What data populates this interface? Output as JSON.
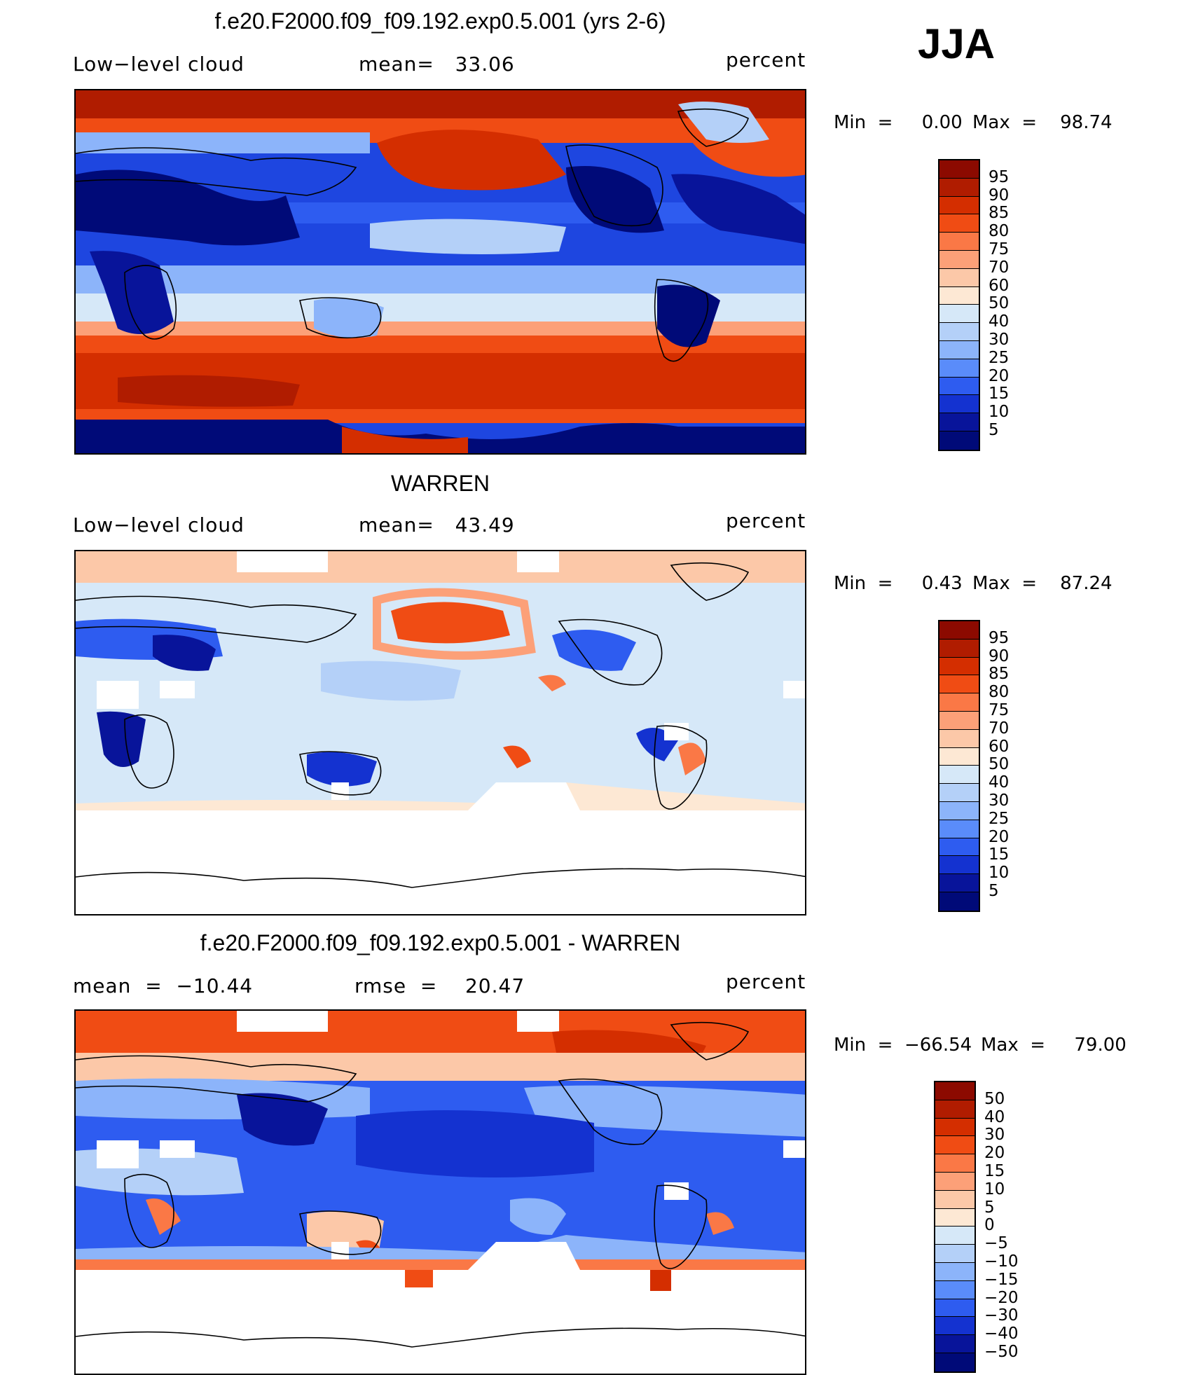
{
  "season": "JJA",
  "panels": [
    {
      "title": "f.e20.F2000.f09_f09.192.exp0.5.001 (yrs 2-6)",
      "left_label": "Low−level cloud",
      "center_label": "mean=   33.06",
      "right_label": "percent",
      "min_label": "Min  =     0.00",
      "max_label": "Max  =    98.74",
      "colorbar_labels": [
        "95",
        "90",
        "85",
        "80",
        "75",
        "70",
        "60",
        "50",
        "40",
        "30",
        "25",
        "20",
        "15",
        "10",
        "5"
      ],
      "colorbar_colors": [
        "#8c0a00",
        "#b01c00",
        "#d42e00",
        "#f04c14",
        "#fa7846",
        "#fca078",
        "#fcc8a8",
        "#fde8d4",
        "#d6e8f8",
        "#b4d0f8",
        "#8cb4fa",
        "#5a8cfa",
        "#2e5cf0",
        "#1432d0",
        "#08149a",
        "#000a78"
      ],
      "map_style": "model"
    },
    {
      "title": "WARREN",
      "left_label": "Low−level cloud",
      "center_label": "mean=   43.49",
      "right_label": "percent",
      "min_label": "Min  =     0.43",
      "max_label": "Max  =    87.24",
      "colorbar_labels": [
        "95",
        "90",
        "85",
        "80",
        "75",
        "70",
        "60",
        "50",
        "40",
        "30",
        "25",
        "20",
        "15",
        "10",
        "5"
      ],
      "colorbar_colors": [
        "#8c0a00",
        "#b01c00",
        "#d42e00",
        "#f04c14",
        "#fa7846",
        "#fca078",
        "#fcc8a8",
        "#fde8d4",
        "#d6e8f8",
        "#b4d0f8",
        "#8cb4fa",
        "#5a8cfa",
        "#2e5cf0",
        "#1432d0",
        "#08149a",
        "#000a78"
      ],
      "map_style": "obs"
    },
    {
      "title": "f.e20.F2000.f09_f09.192.exp0.5.001 - WARREN",
      "left_label": "mean  =  −10.44",
      "center_label": "rmse  =    20.47",
      "right_label": "percent",
      "min_label": "Min  =  −66.54",
      "max_label": "Max  =     79.00",
      "colorbar_labels": [
        "50",
        "40",
        "30",
        "20",
        "15",
        "10",
        "5",
        "0",
        "−5",
        "−10",
        "−15",
        "−20",
        "−30",
        "−40",
        "−50"
      ],
      "colorbar_colors": [
        "#8c0a00",
        "#b01c00",
        "#d42e00",
        "#f04c14",
        "#fa7846",
        "#fca078",
        "#fcc8a8",
        "#fde8d4",
        "#d6e8f8",
        "#b4d0f8",
        "#8cb4fa",
        "#5a8cfa",
        "#2e5cf0",
        "#1432d0",
        "#08149a",
        "#000a78"
      ],
      "map_style": "diff"
    }
  ]
}
